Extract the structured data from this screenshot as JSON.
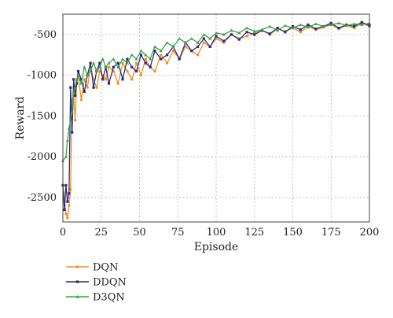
{
  "chart_data": {
    "type": "line",
    "xlabel": "Episode",
    "ylabel": "Reward",
    "xlim": [
      0,
      200
    ],
    "ylim": [
      -2800,
      -250
    ],
    "xticks": [
      0,
      25,
      50,
      75,
      100,
      125,
      150,
      175,
      200
    ],
    "yticks": [
      -2500,
      -2000,
      -1500,
      -1000,
      -500
    ],
    "grid": "dotted",
    "legend_position": "below-left",
    "series": [
      {
        "name": "DQN",
        "color": "#f28e2b",
        "marker": "circle",
        "x": [
          0,
          2,
          3,
          4,
          5,
          6,
          7,
          8,
          9,
          10,
          12,
          14,
          16,
          18,
          20,
          22,
          24,
          26,
          28,
          30,
          33,
          36,
          39,
          42,
          45,
          48,
          51,
          54,
          57,
          60,
          64,
          68,
          72,
          76,
          80,
          84,
          88,
          92,
          96,
          100,
          105,
          110,
          115,
          120,
          125,
          130,
          135,
          140,
          145,
          150,
          155,
          160,
          165,
          170,
          175,
          180,
          185,
          190,
          195,
          200
        ],
        "y": [
          -2350,
          -2700,
          -2750,
          -2600,
          -2400,
          -1300,
          -1250,
          -1550,
          -1100,
          -1000,
          -1300,
          -1050,
          -1150,
          -900,
          -1050,
          -1150,
          -950,
          -1000,
          -1050,
          -900,
          -950,
          -1100,
          -850,
          -950,
          -1050,
          -850,
          -1000,
          -800,
          -900,
          -950,
          -750,
          -850,
          -700,
          -800,
          -650,
          -700,
          -750,
          -600,
          -650,
          -550,
          -600,
          -500,
          -550,
          -520,
          -480,
          -450,
          -500,
          -430,
          -460,
          -420,
          -470,
          -400,
          -440,
          -410,
          -380,
          -430,
          -390,
          -420,
          -360,
          -400
        ]
      },
      {
        "name": "DDQN",
        "color": "#2e2a7a",
        "marker": "square",
        "x": [
          0,
          1,
          2,
          3,
          4,
          5,
          6,
          7,
          8,
          9,
          10,
          12,
          14,
          16,
          18,
          20,
          22,
          24,
          26,
          28,
          30,
          33,
          36,
          39,
          42,
          45,
          48,
          51,
          54,
          57,
          60,
          64,
          68,
          72,
          76,
          80,
          84,
          88,
          92,
          96,
          100,
          105,
          110,
          115,
          120,
          125,
          130,
          135,
          140,
          145,
          150,
          155,
          160,
          165,
          170,
          175,
          180,
          185,
          190,
          195,
          200
        ],
        "y": [
          -2350,
          -2650,
          -2350,
          -2550,
          -2450,
          -1150,
          -1700,
          -1050,
          -1250,
          -1100,
          -950,
          -1050,
          -1200,
          -1000,
          -850,
          -1150,
          -950,
          -850,
          -1050,
          -900,
          -1100,
          -900,
          -850,
          -1050,
          -800,
          -900,
          -950,
          -750,
          -850,
          -900,
          -700,
          -800,
          -750,
          -650,
          -800,
          -600,
          -700,
          -650,
          -550,
          -650,
          -520,
          -580,
          -500,
          -560,
          -470,
          -500,
          -450,
          -490,
          -420,
          -470,
          -400,
          -440,
          -380,
          -430,
          -400,
          -360,
          -420,
          -380,
          -400,
          -350,
          -390
        ]
      },
      {
        "name": "D3QN",
        "color": "#3aa346",
        "marker": "triangle",
        "x": [
          0,
          2,
          3,
          4,
          5,
          6,
          7,
          8,
          9,
          10,
          12,
          14,
          16,
          18,
          20,
          22,
          24,
          26,
          28,
          30,
          33,
          36,
          39,
          42,
          45,
          48,
          51,
          54,
          57,
          60,
          64,
          68,
          72,
          76,
          80,
          84,
          88,
          92,
          96,
          100,
          105,
          110,
          115,
          120,
          125,
          130,
          135,
          140,
          145,
          150,
          155,
          160,
          165,
          170,
          175,
          180,
          185,
          190,
          195,
          200
        ],
        "y": [
          -2050,
          -2000,
          -1800,
          -1650,
          -1550,
          -1450,
          -1200,
          -1150,
          -1050,
          -1000,
          -1100,
          -900,
          -1000,
          -950,
          -850,
          -950,
          -900,
          -800,
          -900,
          -850,
          -800,
          -900,
          -800,
          -850,
          -750,
          -800,
          -700,
          -750,
          -800,
          -650,
          -700,
          -600,
          -650,
          -550,
          -600,
          -550,
          -600,
          -500,
          -550,
          -480,
          -500,
          -450,
          -480,
          -420,
          -460,
          -440,
          -400,
          -450,
          -390,
          -420,
          -380,
          -410,
          -370,
          -400,
          -380,
          -360,
          -390,
          -370,
          -380,
          -360
        ]
      }
    ]
  }
}
